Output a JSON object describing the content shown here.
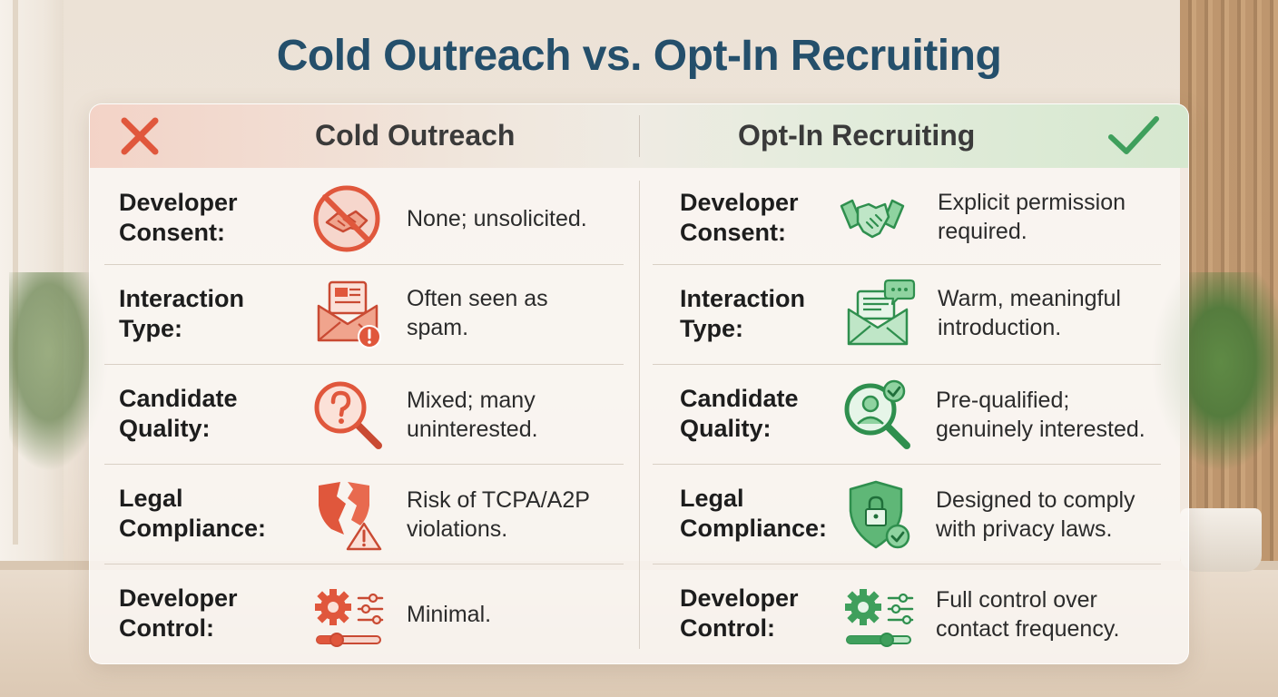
{
  "title": "Cold Outreach vs. Opt-In Recruiting",
  "columns": {
    "left": {
      "name": "Cold Outreach",
      "icon": "x-mark-icon",
      "accent": "#e0573c"
    },
    "right": {
      "name": "Opt-In Recruiting",
      "icon": "check-mark-icon",
      "accent": "#3f9f5c"
    }
  },
  "rows": [
    {
      "label_1": "Developer",
      "label_2": "Consent:",
      "left": {
        "icon": "no-handshake-icon",
        "line_1": "None; unsolicited.",
        "line_2": ""
      },
      "right": {
        "icon": "handshake-icon",
        "line_1": "Explicit permission",
        "line_2": "required."
      }
    },
    {
      "label_1": "Interaction",
      "label_2": "Type:",
      "left": {
        "icon": "envelope-warning-icon",
        "line_1": "Often seen as",
        "line_2": "spam."
      },
      "right": {
        "icon": "envelope-chat-icon",
        "line_1": "Warm, meaningful",
        "line_2": "introduction."
      }
    },
    {
      "label_1": "Candidate",
      "label_2": "Quality:",
      "left": {
        "icon": "question-magnifier-icon",
        "line_1": "Mixed; many",
        "line_2": "uninterested."
      },
      "right": {
        "icon": "person-magnifier-check-icon",
        "line_1": "Pre-qualified;",
        "line_2": "genuinely interested."
      }
    },
    {
      "label_1": "Legal",
      "label_2": "Compliance:",
      "left": {
        "icon": "broken-shield-warning-icon",
        "line_1": "Risk of TCPA/A2P",
        "line_2": "violations."
      },
      "right": {
        "icon": "lock-shield-check-icon",
        "line_1": "Designed to comply",
        "line_2": "with privacy laws."
      }
    },
    {
      "label_1": "Developer",
      "label_2": "Control:",
      "left": {
        "icon": "gear-sliders-icon",
        "line_1": "Minimal.",
        "line_2": ""
      },
      "right": {
        "icon": "gear-sliders-icon",
        "line_1": "Full control over",
        "line_2": "contact frequency."
      }
    }
  ]
}
